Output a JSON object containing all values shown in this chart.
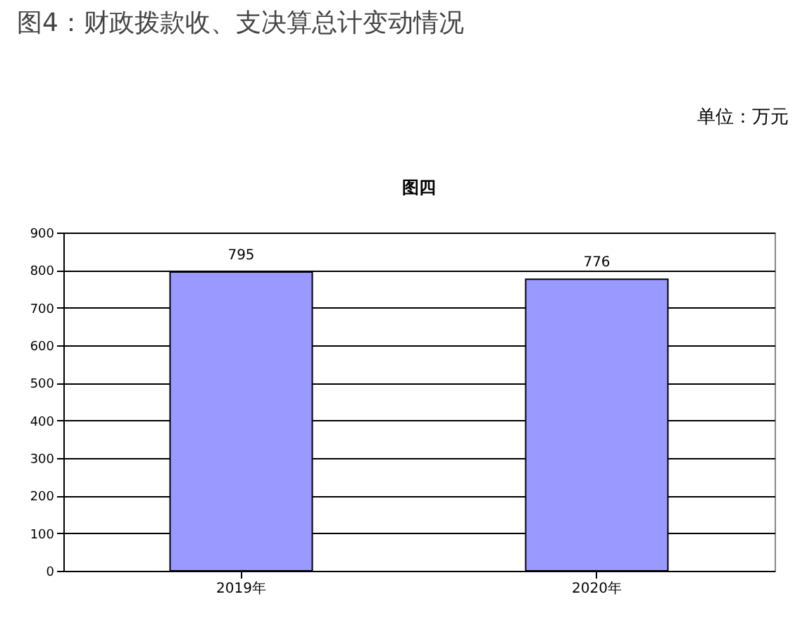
{
  "chart_data": {
    "type": "bar",
    "title": "图4：财政拨款收、支决算总计变动情况",
    "subtitle": "图四",
    "annotations": [
      "单位：万元"
    ],
    "categories": [
      "2019年",
      "2020年"
    ],
    "values": [
      795,
      776
    ],
    "color": "#9999ff",
    "ylim": [
      0,
      900
    ],
    "yticks": [
      0,
      100,
      200,
      300,
      400,
      500,
      600,
      700,
      800,
      900
    ],
    "grid": "y",
    "data_labels": true,
    "legend": false
  }
}
